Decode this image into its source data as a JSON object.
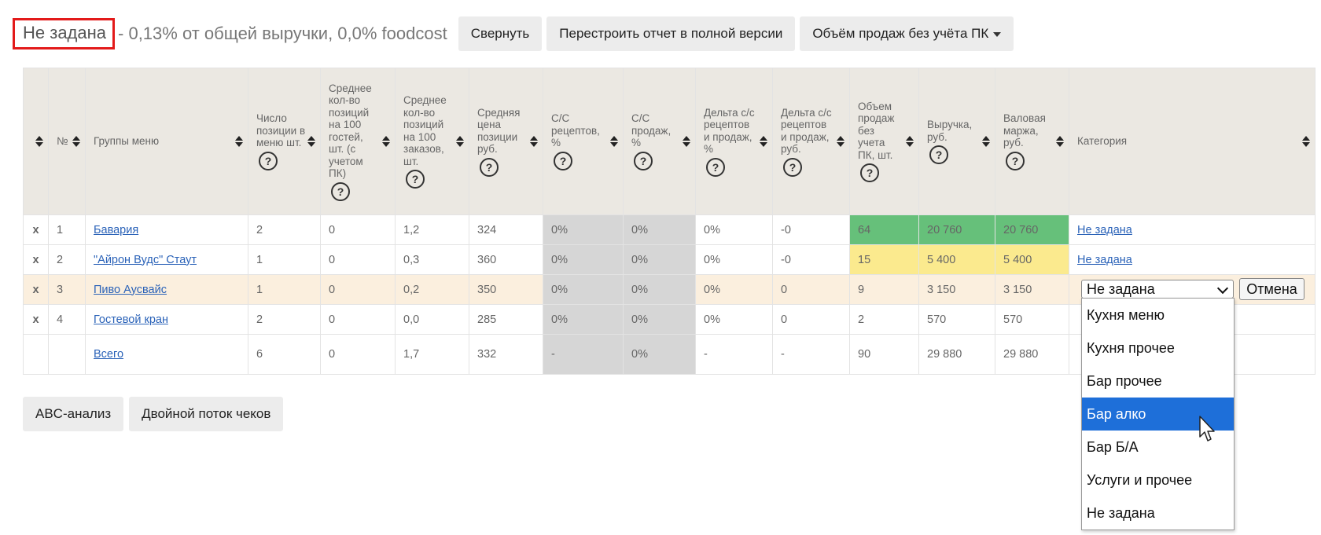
{
  "header": {
    "title_highlight": "Не задана",
    "title_rest": "- 0,13% от общей выручки, 0,0% foodcost",
    "buttons": {
      "collapse": "Свернуть",
      "rebuild": "Перестроить отчет в полной версии",
      "volume": "Объём продаж без учёта ПК"
    }
  },
  "table": {
    "headers": {
      "num": "№",
      "group": "Группы меню",
      "count": "Число позиции в меню шт.",
      "avg_guests": "Среднее кол-во позиций на 100 гостей, шт. (с учетом ПК)",
      "avg_orders": "Среднее кол-во позиций на 100 заказов, шт.",
      "avg_price": "Средняя цена позиции руб.",
      "cc_recipes": "С/С рецептов, %",
      "cc_sales": "С/С продаж, %",
      "delta_pct": "Дельта с/с рецептов и продаж, %",
      "delta_rub": "Дельта с/с рецептов и продаж, руб.",
      "volume": "Объем продаж без учета ПК, шт.",
      "revenue": "Выручка, руб.",
      "margin": "Валовая маржа, руб.",
      "category": "Категория"
    },
    "help_symbol": "?",
    "remove_symbol": "x",
    "rows": [
      {
        "num": "1",
        "group": "Бавария",
        "count": "2",
        "avg_guests": "0",
        "avg_orders": "1,2",
        "avg_price": "324",
        "cc_recipes": "0%",
        "cc_sales": "0%",
        "delta_pct": "0%",
        "delta_rub": "-0",
        "volume": "64",
        "revenue": "20 760",
        "margin": "20 760",
        "category": "Не задана"
      },
      {
        "num": "2",
        "group": "\"Айрон Вудс\" Стаут",
        "count": "1",
        "avg_guests": "0",
        "avg_orders": "0,3",
        "avg_price": "360",
        "cc_recipes": "0%",
        "cc_sales": "0%",
        "delta_pct": "0%",
        "delta_rub": "-0",
        "volume": "15",
        "revenue": "5 400",
        "margin": "5 400",
        "category": "Не задана"
      },
      {
        "num": "3",
        "group": "Пиво Аусвайс",
        "count": "1",
        "avg_guests": "0",
        "avg_orders": "0,2",
        "avg_price": "350",
        "cc_recipes": "0%",
        "cc_sales": "0%",
        "delta_pct": "0%",
        "delta_rub": "0",
        "volume": "9",
        "revenue": "3 150",
        "margin": "3 150"
      },
      {
        "num": "4",
        "group": "Гостевой кран",
        "count": "2",
        "avg_guests": "0",
        "avg_orders": "0,0",
        "avg_price": "285",
        "cc_recipes": "0%",
        "cc_sales": "0%",
        "delta_pct": "0%",
        "delta_rub": "0",
        "volume": "2",
        "revenue": "570",
        "margin": "570"
      }
    ],
    "total": {
      "group": "Всего",
      "count": "6",
      "avg_guests": "0",
      "avg_orders": "1,7",
      "avg_price": "332",
      "cc_recipes": "-",
      "cc_sales": "0%",
      "delta_pct": "-",
      "delta_rub": "-",
      "volume": "90",
      "revenue": "29 880",
      "margin": "29 880"
    }
  },
  "category_editor": {
    "selected": "Не задана",
    "cancel_label": "Отмена",
    "options": [
      "Кухня меню",
      "Кухня прочее",
      "Бар прочее",
      "Бар алко",
      "Бар Б/А",
      "Услуги и прочее",
      "Не задана"
    ],
    "highlighted_option": "Бар алко"
  },
  "bottom_buttons": {
    "abc": "ABC-анализ",
    "double_flow": "Двойной поток чеков"
  },
  "colors": {
    "highlight_border": "#e31a1a",
    "header_bg": "#ebe8e2",
    "link": "#2a62b8",
    "cost_gray": "#d6d6d6",
    "negative_red": "#e2401d",
    "positive_green": "#2fa32f",
    "top_green": "#66c07a",
    "mid_yellow": "#fbea8e",
    "edit_row_bg": "#fbefde",
    "dropdown_active": "#1e6fd9"
  }
}
